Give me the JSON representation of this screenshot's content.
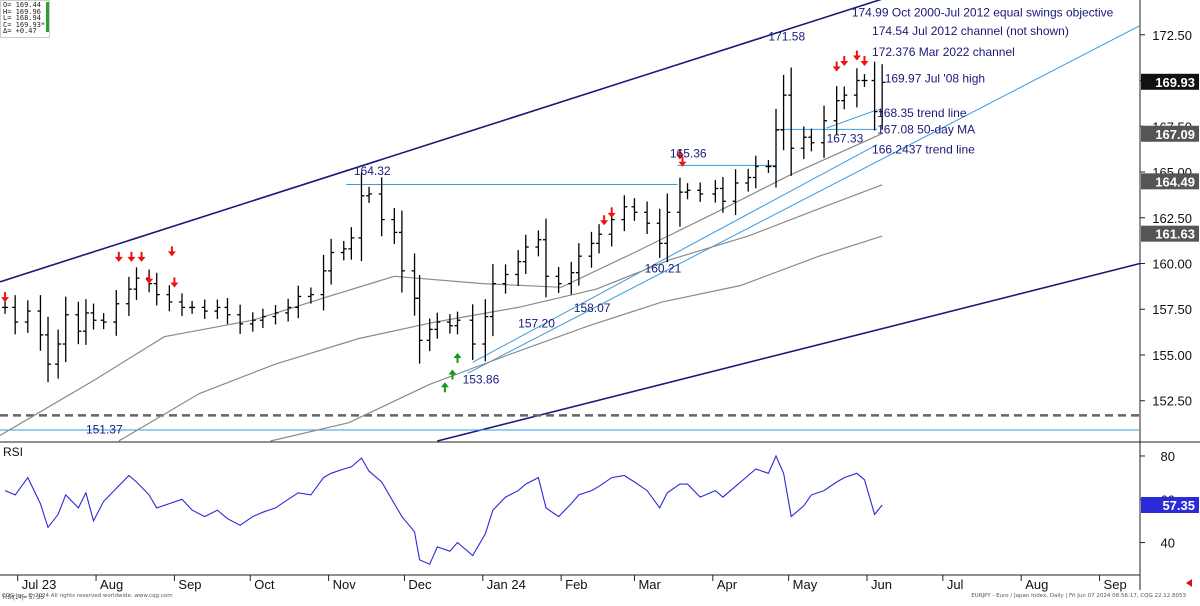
{
  "colors": {
    "bar": "#000000",
    "channel": "#1a1a7a",
    "trend": "#3a9ae0",
    "ma": "#8a8a8a",
    "rsi": "#2a2ad8",
    "down_arrow": "#ee1111",
    "up_arrow": "#119911",
    "annotation": "#1a1a7a",
    "dashed": "#666666",
    "last_price_bg": "#111111",
    "level_bg": "#555555"
  },
  "ohlc_box": {
    "open": "O= 169.44",
    "high": "H= 169.96",
    "low": "L= 168.94",
    "close": "C= 169.93*",
    "change": "Δ=   +0.47"
  },
  "rsi_label": "RSI",
  "rsi_readout": "RSI(14)=  57.35",
  "footer": {
    "left": "CQG Inc. © 2024 All rights reserved worldwide. www.cqg.com",
    "right": "EURJPY - Euro / Japan Index, Daily | Fri Jun 07 2024 08:56:17, CQG 22.12.8053"
  },
  "chart_data": [
    {
      "type": "line",
      "subtype": "ohlc-bars",
      "symbol": "EURJPY",
      "ylim": [
        150.3,
        174.4
      ],
      "y_ticks": [
        152.5,
        155.0,
        157.5,
        160.0,
        162.5,
        165.0,
        167.5,
        170.0,
        172.5
      ],
      "y_tick_labels": [
        "152.50",
        "155.00",
        "157.50",
        "160.00",
        "162.50",
        "165.00",
        "167.50",
        "170.00",
        "172.50"
      ],
      "x_tick_labels": [
        "Jul 23",
        "Aug",
        "Sep",
        "Oct",
        "Nov",
        "Dec",
        "Jan 24",
        "Feb",
        "Mar",
        "Apr",
        "May",
        "Jun",
        "Jul",
        "Aug",
        "Sep"
      ],
      "x_tick_dates": [
        "2023-07-01",
        "2023-08-01",
        "2023-09-01",
        "2023-10-01",
        "2023-11-01",
        "2023-12-01",
        "2024-01-01",
        "2024-02-01",
        "2024-03-01",
        "2024-04-01",
        "2024-05-01",
        "2024-06-01",
        "2024-07-01",
        "2024-08-01",
        "2024-09-01"
      ],
      "xlim": [
        "2023-06-24",
        "2024-09-17"
      ],
      "series": [
        {
          "kind": "close",
          "x": [
            "2023-06-26",
            "2023-06-30",
            "2023-07-05",
            "2023-07-10",
            "2023-07-13",
            "2023-07-17",
            "2023-07-20",
            "2023-07-25",
            "2023-07-28",
            "2023-07-31",
            "2023-08-04",
            "2023-08-09",
            "2023-08-14",
            "2023-08-17",
            "2023-08-22",
            "2023-08-25",
            "2023-08-30",
            "2023-09-04",
            "2023-09-08",
            "2023-09-13",
            "2023-09-18",
            "2023-09-22",
            "2023-09-27",
            "2023-10-02",
            "2023-10-06",
            "2023-10-11",
            "2023-10-16",
            "2023-10-20",
            "2023-10-25",
            "2023-10-30",
            "2023-11-02",
            "2023-11-07",
            "2023-11-10",
            "2023-11-14",
            "2023-11-17",
            "2023-11-22",
            "2023-11-27",
            "2023-11-30",
            "2023-12-05",
            "2023-12-07",
            "2023-12-11",
            "2023-12-14",
            "2023-12-19",
            "2023-12-22",
            "2023-12-28",
            "2024-01-02",
            "2024-01-05",
            "2024-01-10",
            "2024-01-15",
            "2024-01-18",
            "2024-01-23",
            "2024-01-26",
            "2024-01-31",
            "2024-02-05",
            "2024-02-08",
            "2024-02-13",
            "2024-02-16",
            "2024-02-21",
            "2024-02-26",
            "2024-03-01",
            "2024-03-06",
            "2024-03-11",
            "2024-03-14",
            "2024-03-19",
            "2024-03-22",
            "2024-03-27",
            "2024-04-02",
            "2024-04-05",
            "2024-04-10",
            "2024-04-15",
            "2024-04-18",
            "2024-04-23",
            "2024-04-26",
            "2024-04-29",
            "2024-05-02",
            "2024-05-07",
            "2024-05-10",
            "2024-05-15",
            "2024-05-20",
            "2024-05-23",
            "2024-05-28",
            "2024-05-31",
            "2024-06-04",
            "2024-06-07"
          ],
          "y": [
            157.6,
            156.8,
            157.4,
            156.1,
            154.5,
            155.6,
            157.2,
            156.3,
            157.3,
            156.9,
            156.8,
            157.8,
            158.6,
            159.2,
            158.9,
            158.3,
            157.9,
            157.6,
            157.6,
            157.4,
            157.6,
            157.2,
            156.7,
            156.9,
            157.1,
            157.3,
            157.6,
            158.2,
            158.3,
            159.6,
            160.6,
            160.8,
            161.4,
            163.7,
            163.8,
            162.4,
            161.7,
            159.6,
            158.1,
            155.8,
            156.4,
            156.8,
            156.6,
            156.9,
            155.6,
            157.1,
            158.9,
            159.4,
            160.1,
            160.9,
            161.3,
            159.3,
            158.9,
            159.5,
            160.4,
            161.1,
            161.6,
            162.4,
            163.1,
            162.8,
            162.2,
            161.1,
            162.8,
            163.9,
            164.0,
            163.8,
            164.1,
            163.4,
            164.4,
            164.7,
            165.3,
            165.3,
            167.3,
            169.2,
            166.3,
            166.9,
            166.6,
            167.8,
            168.9,
            169.2,
            170.0,
            170.0,
            168.3,
            169.9
          ]
        },
        {
          "kind": "50-day MA",
          "x": [
            "2023-06-24",
            "2023-07-31",
            "2023-08-28",
            "2023-10-02",
            "2023-11-01",
            "2023-11-27",
            "2024-01-01",
            "2024-02-01",
            "2024-03-01",
            "2024-04-01",
            "2024-05-01",
            "2024-06-07"
          ],
          "y": [
            150.6,
            153.6,
            156.0,
            156.9,
            158.2,
            159.3,
            158.9,
            158.7,
            160.6,
            162.7,
            164.8,
            167.1
          ]
        },
        {
          "kind": "100-day MA",
          "x": [
            "2023-08-10",
            "2023-09-11",
            "2023-10-11",
            "2023-11-13",
            "2023-12-13",
            "2024-01-15",
            "2024-02-15",
            "2024-03-15",
            "2024-04-15",
            "2024-05-15",
            "2024-06-07"
          ],
          "y": [
            150.3,
            152.9,
            154.5,
            155.9,
            156.8,
            157.6,
            158.6,
            160.2,
            161.5,
            163.1,
            164.3
          ]
        },
        {
          "kind": "200-day MA",
          "x": [
            "2023-10-09",
            "2023-11-09",
            "2023-12-11",
            "2024-01-11",
            "2024-02-12",
            "2024-03-12",
            "2024-04-12",
            "2024-05-13",
            "2024-06-07"
          ],
          "y": [
            150.3,
            151.3,
            153.4,
            155.0,
            156.6,
            157.9,
            158.8,
            160.4,
            161.5
          ]
        }
      ],
      "price_labels": [
        {
          "value": "169.93",
          "y": 169.93,
          "style": "last"
        },
        {
          "value": "167.09",
          "y": 167.09,
          "style": "level"
        },
        {
          "value": "164.49",
          "y": 164.49,
          "style": "level"
        },
        {
          "value": "161.63",
          "y": 161.63,
          "style": "level"
        }
      ],
      "annotations": [
        {
          "text": "174.99 Oct 2000-Jul 2012 equal swings objective",
          "x": "2024-05-26",
          "y": 173.5
        },
        {
          "text": "174.54 Jul 2012 channel (not shown)",
          "x": "2024-06-03",
          "y": 172.5
        },
        {
          "text": "172.376 Mar 2022 channel",
          "x": "2024-06-03",
          "y": 171.35
        },
        {
          "text": "169.97 Jul '08 high",
          "x": "2024-06-08",
          "y": 169.9
        },
        {
          "text": "168.35 trend line",
          "x": "2024-06-05",
          "y": 168.0
        },
        {
          "text": "167.08 50-day MA",
          "x": "2024-06-05",
          "y": 167.1
        },
        {
          "text": "166.2437 trend line",
          "x": "2024-06-03",
          "y": 166.0
        },
        {
          "text": "171.58",
          "x": "2024-04-23",
          "y": 172.2
        },
        {
          "text": "167.33",
          "x": "2024-05-16",
          "y": 166.6
        },
        {
          "text": "165.36",
          "x": "2024-03-15",
          "y": 165.8
        },
        {
          "text": "164.32",
          "x": "2023-11-11",
          "y": 164.85
        },
        {
          "text": "160.21",
          "x": "2024-03-05",
          "y": 159.5
        },
        {
          "text": "158.07",
          "x": "2024-02-06",
          "y": 157.35
        },
        {
          "text": "157.20",
          "x": "2024-01-15",
          "y": 156.5
        },
        {
          "text": "153.86",
          "x": "2023-12-24",
          "y": 153.45
        },
        {
          "text": "151.37",
          "x": "2023-07-28",
          "y": 150.7
        }
      ],
      "lines": [
        {
          "kind": "channel",
          "x": [
            "2023-06-24",
            "2024-07-12"
          ],
          "y": [
            159.0,
            176.0
          ]
        },
        {
          "kind": "channel",
          "x": [
            "2023-12-14",
            "2024-09-17"
          ],
          "y": [
            150.3,
            160.0
          ]
        },
        {
          "kind": "trend",
          "x": [
            "2023-12-26",
            "2024-09-17"
          ],
          "y": [
            154.0,
            173.0
          ]
        },
        {
          "kind": "trend",
          "x": [
            "2023-12-28",
            "2024-06-05"
          ],
          "y": [
            154.6,
            166.5
          ]
        },
        {
          "kind": "trend",
          "x": [
            "2024-05-16",
            "2024-06-05"
          ],
          "y": [
            167.4,
            168.4
          ]
        },
        {
          "kind": "level",
          "x": [
            "2023-11-08",
            "2024-03-18"
          ],
          "y": [
            164.32,
            164.32
          ]
        },
        {
          "kind": "level",
          "x": [
            "2024-03-18",
            "2024-04-26"
          ],
          "y": [
            165.36,
            165.36
          ]
        },
        {
          "kind": "level",
          "x": [
            "2024-04-26",
            "2024-06-05"
          ],
          "y": [
            167.33,
            167.33
          ]
        },
        {
          "kind": "level",
          "x": [
            "2023-06-24",
            "2024-09-17"
          ],
          "y": [
            150.9,
            150.9
          ]
        },
        {
          "kind": "dashed",
          "x": [
            "2023-06-24",
            "2024-09-17"
          ],
          "y": [
            151.7,
            151.7
          ]
        }
      ],
      "down_arrows": [
        {
          "x": "2023-08-10",
          "y": 160.2
        },
        {
          "x": "2023-08-15",
          "y": 160.2
        },
        {
          "x": "2023-08-19",
          "y": 160.2
        },
        {
          "x": "2023-08-22",
          "y": 159.0
        },
        {
          "x": "2023-08-31",
          "y": 160.5
        },
        {
          "x": "2023-09-01",
          "y": 158.8
        },
        {
          "x": "2023-06-26",
          "y": 158.0
        },
        {
          "x": "2024-02-18",
          "y": 162.2
        },
        {
          "x": "2024-02-21",
          "y": 162.6
        },
        {
          "x": "2024-03-19",
          "y": 165.8
        },
        {
          "x": "2024-03-20",
          "y": 165.4
        },
        {
          "x": "2024-05-20",
          "y": 170.6
        },
        {
          "x": "2024-05-23",
          "y": 170.9
        },
        {
          "x": "2024-05-28",
          "y": 171.2
        },
        {
          "x": "2024-05-31",
          "y": 170.9
        }
      ],
      "up_arrows": [
        {
          "x": "2023-12-17",
          "y": 153.4
        },
        {
          "x": "2023-12-20",
          "y": 154.1
        },
        {
          "x": "2023-12-22",
          "y": 155.0
        }
      ]
    },
    {
      "type": "line",
      "title": "RSI",
      "ylim": [
        25,
        86
      ],
      "y_ticks": [
        40,
        60,
        80
      ],
      "y_tick_labels": [
        "40",
        "60",
        "80"
      ],
      "last_value_label": "57.35",
      "series": [
        {
          "name": "RSI(14)",
          "x": [
            "2023-06-26",
            "2023-06-30",
            "2023-07-05",
            "2023-07-10",
            "2023-07-13",
            "2023-07-17",
            "2023-07-20",
            "2023-07-25",
            "2023-07-28",
            "2023-07-31",
            "2023-08-04",
            "2023-08-09",
            "2023-08-14",
            "2023-08-17",
            "2023-08-22",
            "2023-08-25",
            "2023-08-30",
            "2023-09-04",
            "2023-09-08",
            "2023-09-13",
            "2023-09-18",
            "2023-09-22",
            "2023-09-27",
            "2023-10-02",
            "2023-10-06",
            "2023-10-11",
            "2023-10-16",
            "2023-10-20",
            "2023-10-25",
            "2023-10-30",
            "2023-11-02",
            "2023-11-07",
            "2023-11-10",
            "2023-11-14",
            "2023-11-17",
            "2023-11-22",
            "2023-11-27",
            "2023-11-30",
            "2023-12-05",
            "2023-12-07",
            "2023-12-11",
            "2023-12-14",
            "2023-12-19",
            "2023-12-22",
            "2023-12-28",
            "2024-01-02",
            "2024-01-05",
            "2024-01-10",
            "2024-01-15",
            "2024-01-18",
            "2024-01-23",
            "2024-01-26",
            "2024-01-31",
            "2024-02-05",
            "2024-02-08",
            "2024-02-13",
            "2024-02-16",
            "2024-02-21",
            "2024-02-26",
            "2024-03-01",
            "2024-03-06",
            "2024-03-11",
            "2024-03-14",
            "2024-03-19",
            "2024-03-22",
            "2024-03-27",
            "2024-04-02",
            "2024-04-05",
            "2024-04-10",
            "2024-04-15",
            "2024-04-18",
            "2024-04-23",
            "2024-04-26",
            "2024-04-29",
            "2024-05-02",
            "2024-05-07",
            "2024-05-10",
            "2024-05-15",
            "2024-05-20",
            "2024-05-23",
            "2024-05-28",
            "2024-05-31",
            "2024-06-04",
            "2024-06-07"
          ],
          "y": [
            64,
            62,
            70,
            58,
            47,
            53,
            62,
            56,
            63,
            50,
            59,
            65,
            71,
            68,
            62,
            56,
            58,
            60,
            55,
            52,
            55,
            51,
            48,
            52,
            54,
            56,
            60,
            63,
            62,
            70,
            72,
            74,
            75,
            79,
            73,
            68,
            58,
            52,
            45,
            32,
            30,
            38,
            36,
            40,
            34,
            44,
            55,
            61,
            64,
            67,
            70,
            56,
            52,
            58,
            62,
            64,
            66,
            70,
            71,
            68,
            64,
            56,
            63,
            67,
            67,
            61,
            64,
            61,
            66,
            71,
            74,
            72,
            80,
            72,
            52,
            57,
            62,
            64,
            68,
            70,
            72,
            69,
            53,
            57.35
          ]
        }
      ]
    }
  ]
}
